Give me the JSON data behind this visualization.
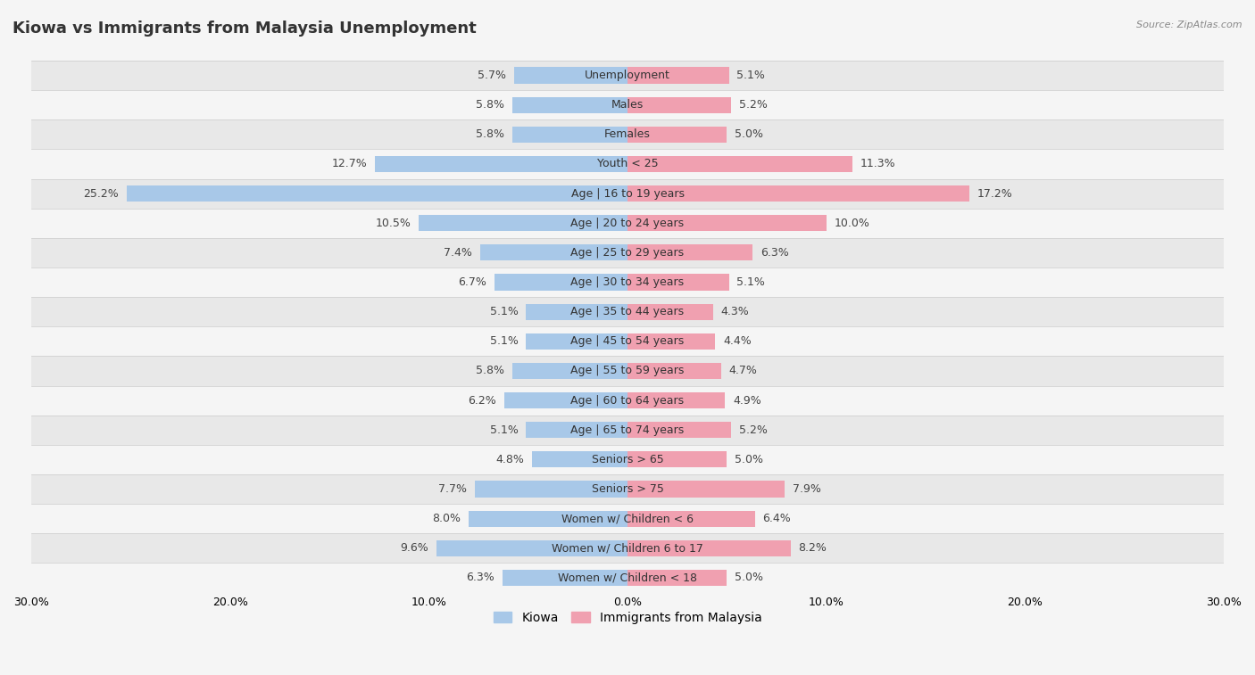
{
  "title": "Kiowa vs Immigrants from Malaysia Unemployment",
  "source": "Source: ZipAtlas.com",
  "categories": [
    "Unemployment",
    "Males",
    "Females",
    "Youth < 25",
    "Age | 16 to 19 years",
    "Age | 20 to 24 years",
    "Age | 25 to 29 years",
    "Age | 30 to 34 years",
    "Age | 35 to 44 years",
    "Age | 45 to 54 years",
    "Age | 55 to 59 years",
    "Age | 60 to 64 years",
    "Age | 65 to 74 years",
    "Seniors > 65",
    "Seniors > 75",
    "Women w/ Children < 6",
    "Women w/ Children 6 to 17",
    "Women w/ Children < 18"
  ],
  "kiowa_values": [
    5.7,
    5.8,
    5.8,
    12.7,
    25.2,
    10.5,
    7.4,
    6.7,
    5.1,
    5.1,
    5.8,
    6.2,
    5.1,
    4.8,
    7.7,
    8.0,
    9.6,
    6.3
  ],
  "malaysia_values": [
    5.1,
    5.2,
    5.0,
    11.3,
    17.2,
    10.0,
    6.3,
    5.1,
    4.3,
    4.4,
    4.7,
    4.9,
    5.2,
    5.0,
    7.9,
    6.4,
    8.2,
    5.0
  ],
  "kiowa_color": "#a8c8e8",
  "malaysia_color": "#f0a0b0",
  "kiowa_label": "Kiowa",
  "malaysia_label": "Immigrants from Malaysia",
  "xlim": 30.0,
  "background_color": "#f5f5f5",
  "row_color_even": "#e8e8e8",
  "row_color_odd": "#f5f5f5",
  "bar_height": 0.55,
  "title_fontsize": 13,
  "label_fontsize": 9,
  "value_fontsize": 9,
  "axis_label_fontsize": 9
}
